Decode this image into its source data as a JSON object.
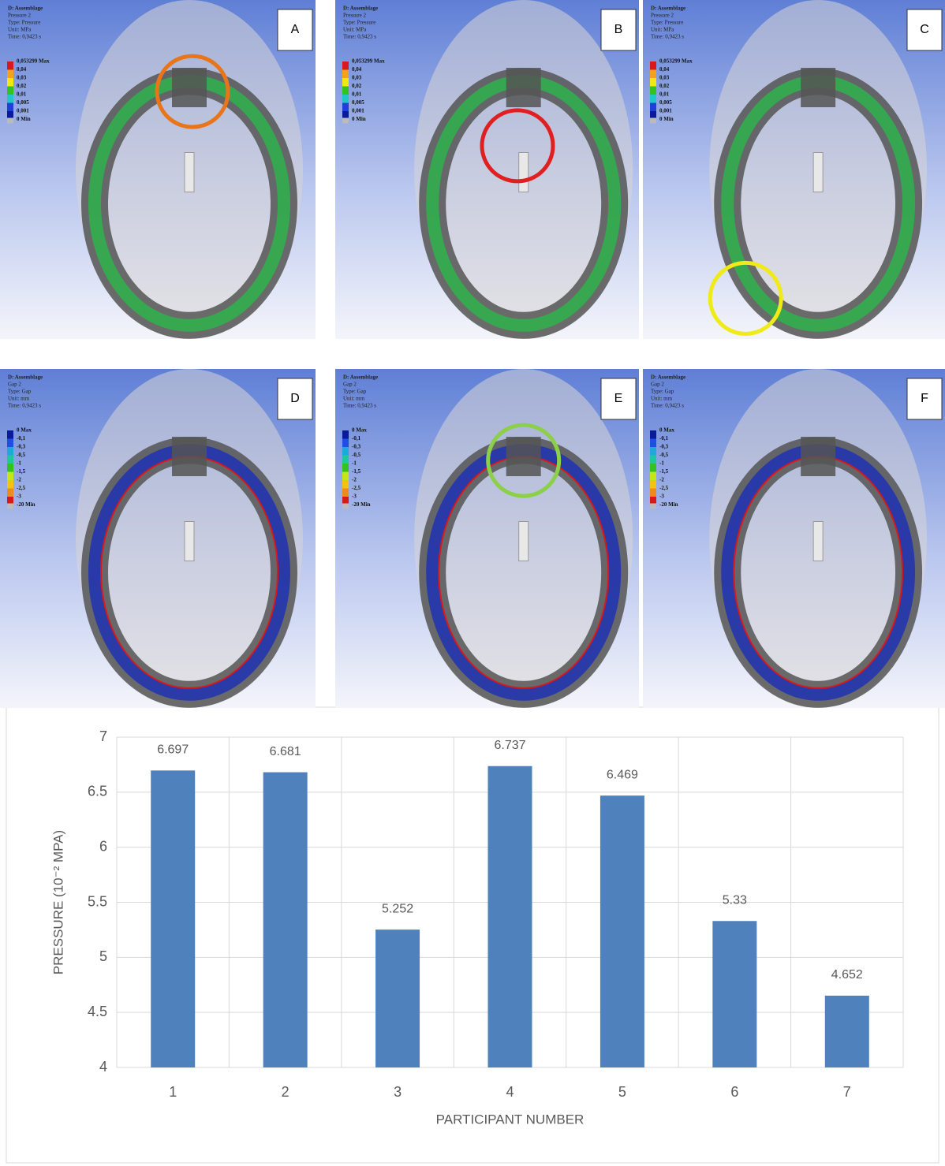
{
  "panels": [
    {
      "label": "A",
      "header": [
        "D: Assemblage",
        "Pressure 2",
        "Type: Pressure",
        "Unit: MPa",
        "Time: 0,9423 s"
      ],
      "legend": [
        "0,053299 Max",
        "0,04",
        "0,03",
        "0,02",
        "0,01",
        "0,005",
        "0,001",
        "0 Min"
      ]
    },
    {
      "label": "B",
      "header": [
        "D: Assemblage",
        "Pressure 2",
        "Type: Pressure",
        "Unit: MPa",
        "Time: 0,9423 s"
      ],
      "legend": [
        "0,053299 Max",
        "0,04",
        "0,03",
        "0,02",
        "0,01",
        "0,005",
        "0,001",
        "0 Min"
      ]
    },
    {
      "label": "C",
      "header": [
        "D: Assemblage",
        "Pressure 2",
        "Type: Pressure",
        "Unit: MPa",
        "Time: 0,9423 s"
      ],
      "legend": [
        "0,053299 Max",
        "0,04",
        "0,03",
        "0,02",
        "0,01",
        "0,005",
        "0,001",
        "0 Min"
      ]
    },
    {
      "label": "D",
      "header": [
        "D: Assemblage",
        "Gap 2",
        "Type: Gap",
        "Unit: mm",
        "Time: 0,9423 s"
      ],
      "legend": [
        "0 Max",
        "-0,1",
        "-0,3",
        "-0,5",
        "-1",
        "-1,5",
        "-2",
        "-2,5",
        "-3",
        "-20 Min"
      ]
    },
    {
      "label": "E",
      "header": [
        "D: Assemblage",
        "Gap 2",
        "Type: Gap",
        "Unit: mm",
        "Time: 0,9423 s"
      ],
      "legend": [
        "0 Max",
        "-0,1",
        "-0,3",
        "-0,5",
        "-1",
        "-1,5",
        "-2",
        "-2,5",
        "-3",
        "-20 Min"
      ]
    },
    {
      "label": "F",
      "header": [
        "D: Assemblage",
        "Gap 2",
        "Type: Gap",
        "Unit: mm",
        "Time: 0,9423 s"
      ],
      "legend": [
        "0 Max",
        "-0,1",
        "-0,3",
        "-0,5",
        "-1",
        "-1,5",
        "-2",
        "-2,5",
        "-3",
        "-20 Min"
      ]
    }
  ],
  "chart_data": {
    "type": "bar",
    "x_label": "PARTICIPANT NUMBER",
    "y_label": "PRESSURE (10⁻² MPA)",
    "categories": [
      "1",
      "2",
      "3",
      "4",
      "5",
      "6",
      "7"
    ],
    "values": [
      6.697,
      6.681,
      5.252,
      6.737,
      6.469,
      5.33,
      4.652
    ],
    "color": "#4f81bd",
    "ylim": [
      4,
      7
    ],
    "yticks": [
      4,
      4.5,
      5,
      5.5,
      6,
      6.5,
      7
    ],
    "grid": true
  }
}
